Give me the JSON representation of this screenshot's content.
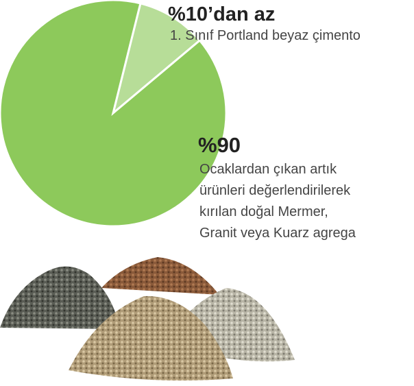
{
  "chart_data": {
    "type": "pie",
    "values": [
      10,
      90
    ],
    "value_labels": [
      "%10’dan az",
      "%90"
    ],
    "descriptions": [
      [
        "1. Sınıf Portland beyaz çimento"
      ],
      [
        "Ocaklardan çıkan artık",
        "ürünleri değerlendirilerek",
        "kırılan doğal Mermer,",
        "Granit veya Kuarz agrega"
      ]
    ],
    "colors": [
      "#b7dd98",
      "#8dc95b"
    ]
  }
}
